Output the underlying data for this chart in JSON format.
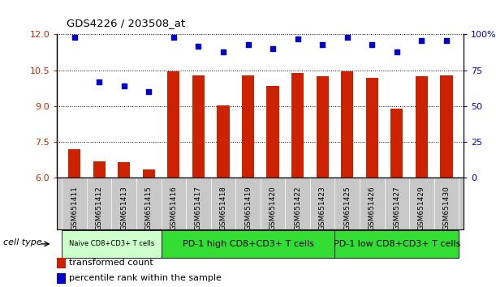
{
  "title": "GDS4226 / 203508_at",
  "samples": [
    "GSM651411",
    "GSM651412",
    "GSM651413",
    "GSM651415",
    "GSM651416",
    "GSM651417",
    "GSM651418",
    "GSM651419",
    "GSM651420",
    "GSM651422",
    "GSM651423",
    "GSM651425",
    "GSM651426",
    "GSM651427",
    "GSM651429",
    "GSM651430"
  ],
  "bar_values": [
    7.2,
    6.7,
    6.65,
    6.35,
    10.45,
    10.3,
    9.05,
    10.3,
    9.85,
    10.4,
    10.25,
    10.45,
    10.2,
    8.9,
    10.25,
    10.3
  ],
  "dot_values_pct": [
    98,
    67,
    64,
    60,
    98,
    92,
    88,
    93,
    90,
    97,
    93,
    98,
    93,
    88,
    96,
    96
  ],
  "ylim_left": [
    6,
    12
  ],
  "ylim_right": [
    0,
    100
  ],
  "yticks_left": [
    6,
    7.5,
    9,
    10.5,
    12
  ],
  "yticks_right": [
    0,
    25,
    50,
    75,
    100
  ],
  "bar_color": "#cc2200",
  "dot_color": "#0000cc",
  "bar_baseline": 6,
  "groups": [
    {
      "label": "Naive CD8+CD3+ T cells",
      "start": 0,
      "end": 4,
      "color": "#ccffcc"
    },
    {
      "label": "PD-1 high CD8+CD3+ T cells",
      "start": 4,
      "end": 11,
      "color": "#33dd33"
    },
    {
      "label": "PD-1 low CD8+CD3+ T cells",
      "start": 11,
      "end": 16,
      "color": "#33dd33"
    }
  ],
  "cell_type_label": "cell type",
  "legend_items": [
    {
      "label": "transformed count",
      "color": "#cc2200"
    },
    {
      "label": "percentile rank within the sample",
      "color": "#0000cc"
    }
  ],
  "xlabel_bg_color": "#c8c8c8",
  "grid_color": "black"
}
